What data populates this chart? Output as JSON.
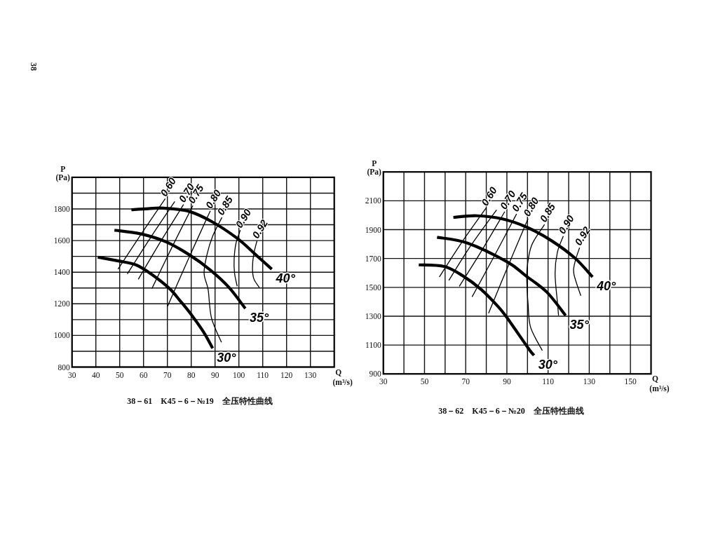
{
  "chart_data": [
    {
      "type": "line",
      "title": "38－61　K45－6－№19　全压特性曲线",
      "xlabel": "Q\n(m³/s)",
      "ylabel": "P\n(Pa)",
      "xlim": [
        30,
        140
      ],
      "ylim": [
        800,
        2000
      ],
      "xticks": [
        30,
        40,
        50,
        60,
        70,
        80,
        90,
        100,
        110,
        120,
        130
      ],
      "yticks": [
        800,
        {
          "value": 900,
          "label": null
        },
        1000,
        {
          "value": 1100,
          "label": null
        },
        1200,
        {
          "value": 1300,
          "label": null
        },
        1400,
        {
          "value": 1500,
          "label": null
        },
        1600,
        {
          "value": 1700,
          "label": null
        },
        1800,
        {
          "value": 1900,
          "label": null
        }
      ],
      "grid": true,
      "annotations": [
        "38"
      ],
      "series": [
        {
          "name": "30°",
          "color": "#000000",
          "x": [
            40.8,
            49.8,
            57.0,
            64.0,
            71.0,
            75.3,
            79.6,
            85.1,
            89.0
          ],
          "values": [
            1495,
            1470,
            1445,
            1380,
            1295,
            1220,
            1140,
            1023,
            919
          ]
        },
        {
          "name": "35°",
          "color": "#000000",
          "x": [
            47.8,
            58.6,
            69.4,
            79.2,
            88.0,
            95.9,
            102.7
          ],
          "values": [
            1666,
            1643,
            1592,
            1510,
            1414,
            1303,
            1170
          ]
        },
        {
          "name": "40°",
          "color": "#000000",
          "x": [
            54.9,
            62.0,
            68.4,
            79.2,
            89.0,
            99.3,
            106.6,
            113.8
          ],
          "values": [
            1795,
            1802,
            1805,
            1784,
            1717,
            1614,
            1517,
            1419
          ]
        },
        {
          "name": "0.60",
          "color": "#000000",
          "x": [
            49.3,
            59.1,
            69.1
          ],
          "values": [
            1419,
            1643,
            1865
          ]
        },
        {
          "color": "#000000",
          "x": [
            53.2,
            63.0,
            73.1
          ],
          "values": [
            1389,
            1620,
            1847
          ]
        },
        {
          "name": "0.70",
          "color": "#000000",
          "x": [
            57.8,
            67.0,
            76.8
          ],
          "values": [
            1355,
            1590,
            1828
          ]
        },
        {
          "name": "0.75",
          "color": "#000000",
          "x": [
            63.5,
            72.0,
            80.7
          ],
          "values": [
            1296,
            1560,
            1821
          ]
        },
        {
          "name": "0.80",
          "color": "#000000",
          "x": [
            70.1,
            79.0,
            88.0
          ],
          "values": [
            1185,
            1490,
            1788
          ]
        },
        {
          "name": "0.85",
          "color": "#000000",
          "x": [
            92.7,
            88.5,
            87.1,
            85.4,
            86.6,
            89.0,
            92.9
          ],
          "values": [
            956,
            1111,
            1289,
            1392,
            1510,
            1628,
            1747
          ]
        },
        {
          "name": "0.90",
          "color": "#000000",
          "x": [
            99.3,
            98.2,
            98.0,
            98.8,
            100.6
          ],
          "values": [
            1311,
            1392,
            1481,
            1584,
            1666
          ]
        },
        {
          "name": "0.92",
          "color": "#000000",
          "x": [
            108.6,
            106.3,
            105.7,
            106.2,
            107.6
          ],
          "values": [
            1303,
            1357,
            1423,
            1512,
            1599
          ]
        }
      ]
    },
    {
      "type": "line",
      "title": "38－62　K45－6－№20　全压特性曲线",
      "xlabel": "Q\n(m³/s)",
      "ylabel": "P\n(Pa)",
      "xlim": [
        30,
        160
      ],
      "ylim": [
        900,
        2300
      ],
      "xticks": [
        30,
        {
          "value": 40,
          "label": null
        },
        50,
        {
          "value": 60,
          "label": null
        },
        70,
        {
          "value": 80,
          "label": null
        },
        90,
        {
          "value": 100,
          "label": null
        },
        110,
        {
          "value": 120,
          "label": null
        },
        130,
        {
          "value": 140,
          "label": null
        },
        150
      ],
      "yticks": [
        900,
        1100,
        1300,
        1500,
        1700,
        1900,
        2100
      ],
      "grid": true,
      "series": [
        {
          "name": "30°",
          "color": "#000000",
          "x": [
            47.2,
            59.5,
            68.6,
            77.7,
            85.6,
            90.1,
            100.4,
            103.2
          ],
          "values": [
            1656,
            1645,
            1580,
            1483,
            1369,
            1289,
            1078,
            1029
          ]
        },
        {
          "name": "35°",
          "color": "#000000",
          "x": [
            56.1,
            70.9,
            90.1,
            99.2,
            109.4,
            118.5
          ],
          "values": [
            1847,
            1807,
            1677,
            1580,
            1467,
            1305
          ]
        },
        {
          "name": "40°",
          "color": "#000000",
          "x": [
            64.0,
            75.4,
            87.9,
            99.8,
            111.7,
            123.1,
            131.6
          ],
          "values": [
            1985,
            1996,
            1974,
            1916,
            1823,
            1702,
            1572
          ]
        },
        {
          "name": "0.60",
          "color": "#000000",
          "x": [
            57.2,
            68.0,
            79.9
          ],
          "values": [
            1572,
            1810,
            2050
          ]
        },
        {
          "color": "#000000",
          "x": [
            61.8,
            72.5,
            85.0
          ],
          "values": [
            1548,
            1790,
            2037
          ]
        },
        {
          "name": "0.70",
          "color": "#000000",
          "x": [
            66.9,
            78.0,
            89.0
          ],
          "values": [
            1507,
            1760,
            2025
          ]
        },
        {
          "name": "0.75",
          "color": "#000000",
          "x": [
            73.1,
            84.0,
            94.7
          ],
          "values": [
            1434,
            1720,
            2009
          ]
        },
        {
          "name": "0.80",
          "color": "#000000",
          "x": [
            81.1,
            90.5,
            100.3
          ],
          "values": [
            1321,
            1645,
            1977
          ]
        },
        {
          "name": "0.85",
          "color": "#000000",
          "x": [
            107.2,
            101.5,
            100.3,
            99.8,
            99.8,
            102.0,
            108.3
          ],
          "values": [
            1062,
            1224,
            1386,
            1499,
            1629,
            1791,
            1936
          ]
        },
        {
          "name": "0.90",
          "color": "#000000",
          "x": [
            115.1,
            114.5,
            113.4,
            114.5,
            117.4
          ],
          "values": [
            1305,
            1402,
            1596,
            1742,
            1855
          ]
        },
        {
          "name": "0.92",
          "color": "#000000",
          "x": [
            125.9,
            122.5,
            123.1,
            125.3
          ],
          "values": [
            1442,
            1596,
            1677,
            1775
          ]
        }
      ]
    }
  ]
}
